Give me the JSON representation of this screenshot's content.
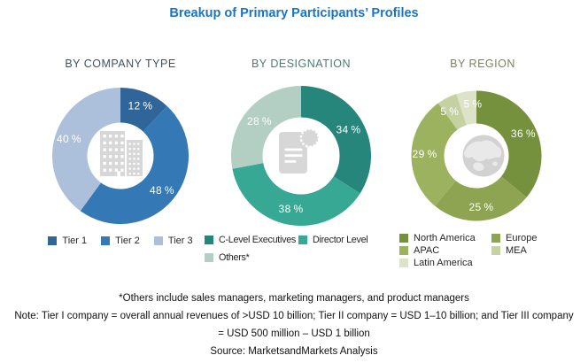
{
  "title": {
    "text": "Breakup of Primary Participants’ Profiles",
    "color": "#1c75bc"
  },
  "chart_data": [
    {
      "type": "pie",
      "subtype": "donut",
      "title": "BY COMPANY TYPE",
      "title_color": "#3e5162",
      "center_icon": "buildings-icon",
      "unit": "%",
      "slices": [
        {
          "name": "Tier 1",
          "value": 12,
          "color": "#30659a"
        },
        {
          "name": "Tier 2",
          "value": 48,
          "color": "#3478b6"
        },
        {
          "name": "Tier 3",
          "value": 40,
          "color": "#adc0db"
        }
      ],
      "legend_position": "bottom",
      "legend_layout": "row"
    },
    {
      "type": "pie",
      "subtype": "donut",
      "title": "BY DESIGNATION",
      "title_color": "#4e7a73",
      "center_icon": "document-badge-icon",
      "unit": "%",
      "slices": [
        {
          "name": "C-Level Executives",
          "value": 34,
          "color": "#27867b"
        },
        {
          "name": "Director Level",
          "value": 38,
          "color": "#37a894"
        },
        {
          "name": "Others*",
          "value": 28,
          "color": "#b3cfc4"
        }
      ],
      "legend_position": "bottom",
      "legend_layout": "grid"
    },
    {
      "type": "pie",
      "subtype": "donut",
      "title": "BY REGION",
      "title_color": "#7d8454",
      "center_icon": "globe-icon",
      "unit": "%",
      "slices": [
        {
          "name": "North America",
          "value": 36,
          "color": "#76913e"
        },
        {
          "name": "Europe",
          "value": 25,
          "color": "#8ea452"
        },
        {
          "name": "APAC",
          "value": 29,
          "color": "#9db25e"
        },
        {
          "name": "MEA",
          "value": 5,
          "color": "#c4d1a1",
          "label_da": -4
        },
        {
          "name": "Latin America",
          "value": 5,
          "color": "#dde3c9",
          "label_da": 5
        }
      ],
      "legend_position": "bottom",
      "legend_layout": "grid"
    }
  ],
  "notes": {
    "others": "*Others include sales managers, marketing managers, and product managers",
    "note_line1": "Note: Tier I company = overall annual revenues of >USD 10 billion; Tier II company = USD 1–10 billion; and Tier III company",
    "note_line2": "= USD 500 million – USD 1 billion",
    "source": "Source: MarketsandMarkets Analysis"
  }
}
